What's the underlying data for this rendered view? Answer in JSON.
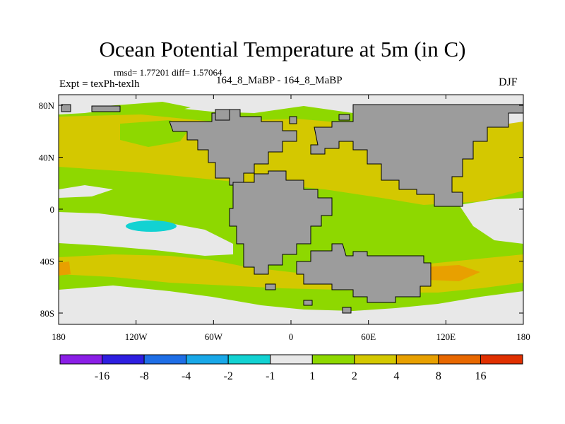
{
  "title": "Ocean Potential Temperature at 5m (in C)",
  "stats": "rmsd= 1.77201 diff= 1.57064",
  "experiment": "Expt = texPh-texlh",
  "runs": "164_8_MaBP - 164_8_MaBP",
  "season": "DJF",
  "axes": {
    "x_ticks": [
      "180",
      "120W",
      "60W",
      "0",
      "60E",
      "120E",
      "180"
    ],
    "y_ticks": [
      "80N",
      "40N",
      "0",
      "40S",
      "80S"
    ]
  },
  "colorbar": {
    "labels": [
      "-16",
      "-8",
      "-4",
      "-2",
      "-1",
      "1",
      "2",
      "4",
      "8",
      "16"
    ],
    "colors": [
      "#8a1ee6",
      "#2e1ee0",
      "#1e6ee6",
      "#19a8e8",
      "#12d2d2",
      "#e8e8e8",
      "#8ed800",
      "#d4c800",
      "#e8a000",
      "#e86800",
      "#e03000"
    ]
  },
  "colors": {
    "land": "#9c9c9c",
    "neutral": "#e8e8e8",
    "green": "#8ed800",
    "yellow": "#d4c800",
    "orange": "#e8a000",
    "cyan": "#12d2d2"
  }
}
